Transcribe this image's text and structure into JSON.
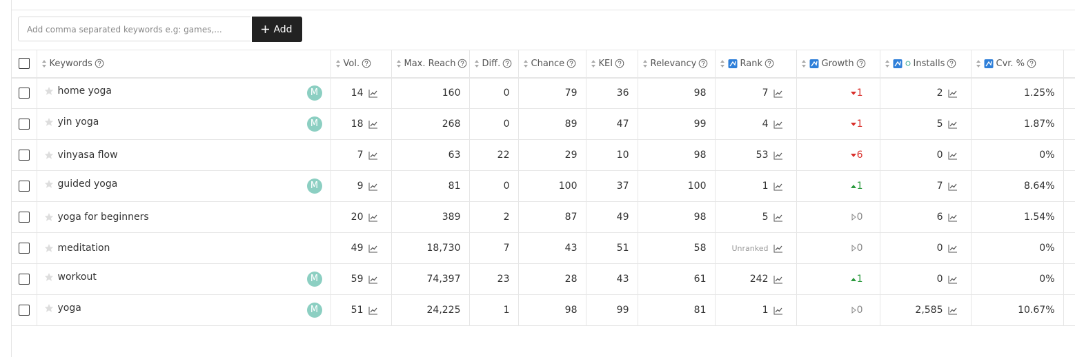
{
  "add_bar": {
    "placeholder": "Add comma separated keywords e.g: games,...",
    "button": "Add"
  },
  "table": {
    "headers": {
      "keyword": "Keywords",
      "vol": "Vol.",
      "max_reach": "Max. Reach",
      "diff": "Diff.",
      "chance": "Chance",
      "kei": "KEI",
      "relevancy": "Relevancy",
      "rank": "Rank",
      "growth": "Growth",
      "installs": "Installs",
      "cvr": "Cvr. %"
    },
    "rows": [
      {
        "keyword": "home yoga",
        "badge": "M",
        "vol": "14",
        "max_reach": "160",
        "diff": "0",
        "chance": "79",
        "kei": "36",
        "relevancy": "98",
        "rank": "7",
        "growth": {
          "trend": "down",
          "value": "1"
        },
        "installs": "2",
        "cvr": "1.25%"
      },
      {
        "keyword": "yin yoga",
        "badge": "M",
        "vol": "18",
        "max_reach": "268",
        "diff": "0",
        "chance": "89",
        "kei": "47",
        "relevancy": "99",
        "rank": "4",
        "growth": {
          "trend": "down",
          "value": "1"
        },
        "installs": "5",
        "cvr": "1.87%"
      },
      {
        "keyword": "vinyasa flow",
        "vol": "7",
        "max_reach": "63",
        "diff": "22",
        "chance": "29",
        "kei": "10",
        "relevancy": "98",
        "rank": "53",
        "growth": {
          "trend": "down",
          "value": "6"
        },
        "installs": "0",
        "cvr": "0%"
      },
      {
        "keyword": "guided yoga",
        "badge": "M",
        "vol": "9",
        "max_reach": "81",
        "diff": "0",
        "chance": "100",
        "kei": "37",
        "relevancy": "100",
        "rank": "1",
        "growth": {
          "trend": "up",
          "value": "1"
        },
        "installs": "7",
        "cvr": "8.64%"
      },
      {
        "keyword": "yoga for beginners",
        "vol": "20",
        "max_reach": "389",
        "diff": "2",
        "chance": "87",
        "kei": "49",
        "relevancy": "98",
        "rank": "5",
        "growth": {
          "trend": "flat",
          "value": "0"
        },
        "installs": "6",
        "cvr": "1.54%"
      },
      {
        "keyword": "meditation",
        "vol": "49",
        "max_reach": "18,730",
        "diff": "7",
        "chance": "43",
        "kei": "51",
        "relevancy": "58",
        "rank": "Unranked",
        "growth": {
          "trend": "flat",
          "value": "0"
        },
        "installs": "0",
        "cvr": "0%"
      },
      {
        "keyword": "workout",
        "badge": "M",
        "vol": "59",
        "max_reach": "74,397",
        "diff": "23",
        "chance": "28",
        "kei": "43",
        "relevancy": "61",
        "rank": "242",
        "growth": {
          "trend": "up",
          "value": "1"
        },
        "installs": "0",
        "cvr": "0%"
      },
      {
        "keyword": "yoga",
        "badge": "M",
        "vol": "51",
        "max_reach": "24,225",
        "diff": "1",
        "chance": "98",
        "kei": "99",
        "relevancy": "81",
        "rank": "1",
        "growth": {
          "trend": "flat",
          "value": "0"
        },
        "installs": "2,585",
        "cvr": "10.67%"
      }
    ]
  }
}
